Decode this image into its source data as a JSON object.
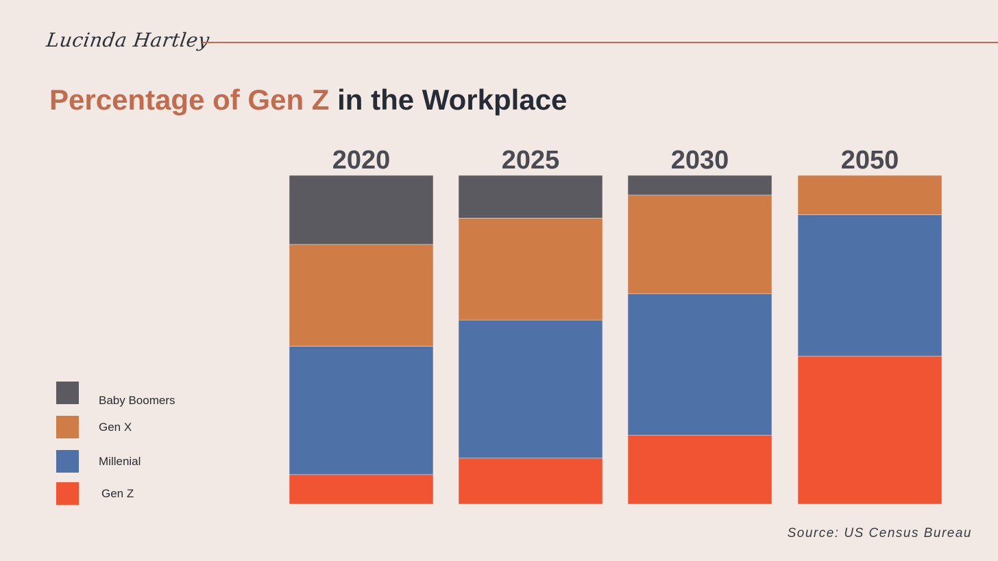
{
  "header": {
    "author": "Lucinda Hartley",
    "title_accent": "Percentage of Gen Z",
    "title_rest": "in the Workplace"
  },
  "footer": {
    "source": "Source: US Census Bureau"
  },
  "chart_data": {
    "type": "bar",
    "stacked": true,
    "orientation": "vertical",
    "title": "Percentage of Gen Z in the Workplace",
    "categories": [
      "2020",
      "2025",
      "2030",
      "2050"
    ],
    "series": [
      {
        "name": "Baby Boomers",
        "color": "#5a5a60",
        "values": [
          21,
          13,
          6,
          0
        ]
      },
      {
        "name": "Gen X",
        "color": "#d07c46",
        "values": [
          31,
          31,
          30,
          12
        ]
      },
      {
        "name": "Millenial",
        "color": "#4e72a8",
        "values": [
          39,
          42,
          43,
          43
        ]
      },
      {
        "name": "Gen Z",
        "color": "#f05433",
        "values": [
          9,
          14,
          21,
          45
        ]
      }
    ],
    "ylim": [
      0,
      100
    ],
    "grid": false,
    "legend_position": "left",
    "category_labels_position": "top",
    "legend_labels": [
      "Baby Boomers",
      "Gen X",
      "Millenial",
      "Gen Z"
    ]
  }
}
